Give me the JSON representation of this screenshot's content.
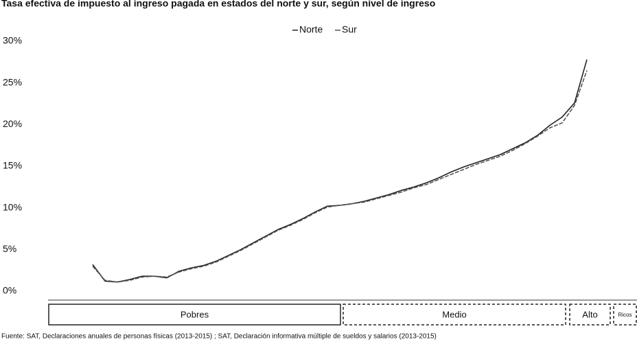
{
  "chart_data": {
    "type": "line",
    "title": "Tasa efectiva de impuesto al ingreso pagada en estados del norte y sur, según nivel de ingreso",
    "source": "Fuente: SAT, Declaraciones anuales de personas físicas (2013-2015) ; SAT, Declaración informativa múltiple de sueldos y salarios (2013-2015)",
    "categories": [
      null,
      null,
      null,
      null,
      null,
      null,
      null,
      null,
      null,
      null,
      null,
      null,
      null,
      null,
      null,
      null,
      null,
      null,
      null,
      null,
      null,
      null,
      null,
      null,
      null,
      null,
      null,
      null,
      null,
      null,
      null,
      null,
      null,
      null,
      null,
      null,
      null,
      null,
      null,
      null,
      null
    ],
    "series": [
      {
        "name": "Norte",
        "color": "#222222",
        "values": [
          3.2,
          1.2,
          1.1,
          1.4,
          1.8,
          1.8,
          1.6,
          2.4,
          2.8,
          3.1,
          3.6,
          4.3,
          5.0,
          5.8,
          6.6,
          7.4,
          8.0,
          8.7,
          9.5,
          10.2,
          10.3,
          10.5,
          10.8,
          11.2,
          11.6,
          12.1,
          12.5,
          13.0,
          13.6,
          14.3,
          14.9,
          15.4,
          15.9,
          16.4,
          17.1,
          17.8,
          18.7,
          19.9,
          20.9,
          22.6,
          27.8
        ]
      },
      {
        "name": "Sur",
        "color": "#555555",
        "values": [
          3.0,
          1.3,
          1.1,
          1.3,
          1.7,
          1.8,
          1.7,
          2.3,
          2.7,
          3.0,
          3.5,
          4.2,
          4.9,
          5.7,
          6.5,
          7.3,
          7.9,
          8.6,
          9.4,
          10.1,
          10.3,
          10.5,
          10.7,
          11.1,
          11.5,
          11.9,
          12.4,
          12.8,
          13.4,
          14.0,
          14.6,
          15.2,
          15.7,
          16.2,
          16.9,
          17.7,
          18.6,
          19.6,
          20.2,
          22.3,
          26.5
        ]
      }
    ],
    "ylim": [
      0,
      30
    ],
    "yticks": [
      {
        "value": 0,
        "label": "0%"
      },
      {
        "value": 5,
        "label": "5%"
      },
      {
        "value": 10,
        "label": "10%"
      },
      {
        "value": 15,
        "label": "15%"
      },
      {
        "value": 20,
        "label": "20%"
      },
      {
        "value": 25,
        "label": "25%"
      },
      {
        "value": 30,
        "label": "30%"
      }
    ],
    "segments": [
      "Pobres",
      "Medio",
      "Alto",
      "Ricos"
    ],
    "legend": "top"
  }
}
